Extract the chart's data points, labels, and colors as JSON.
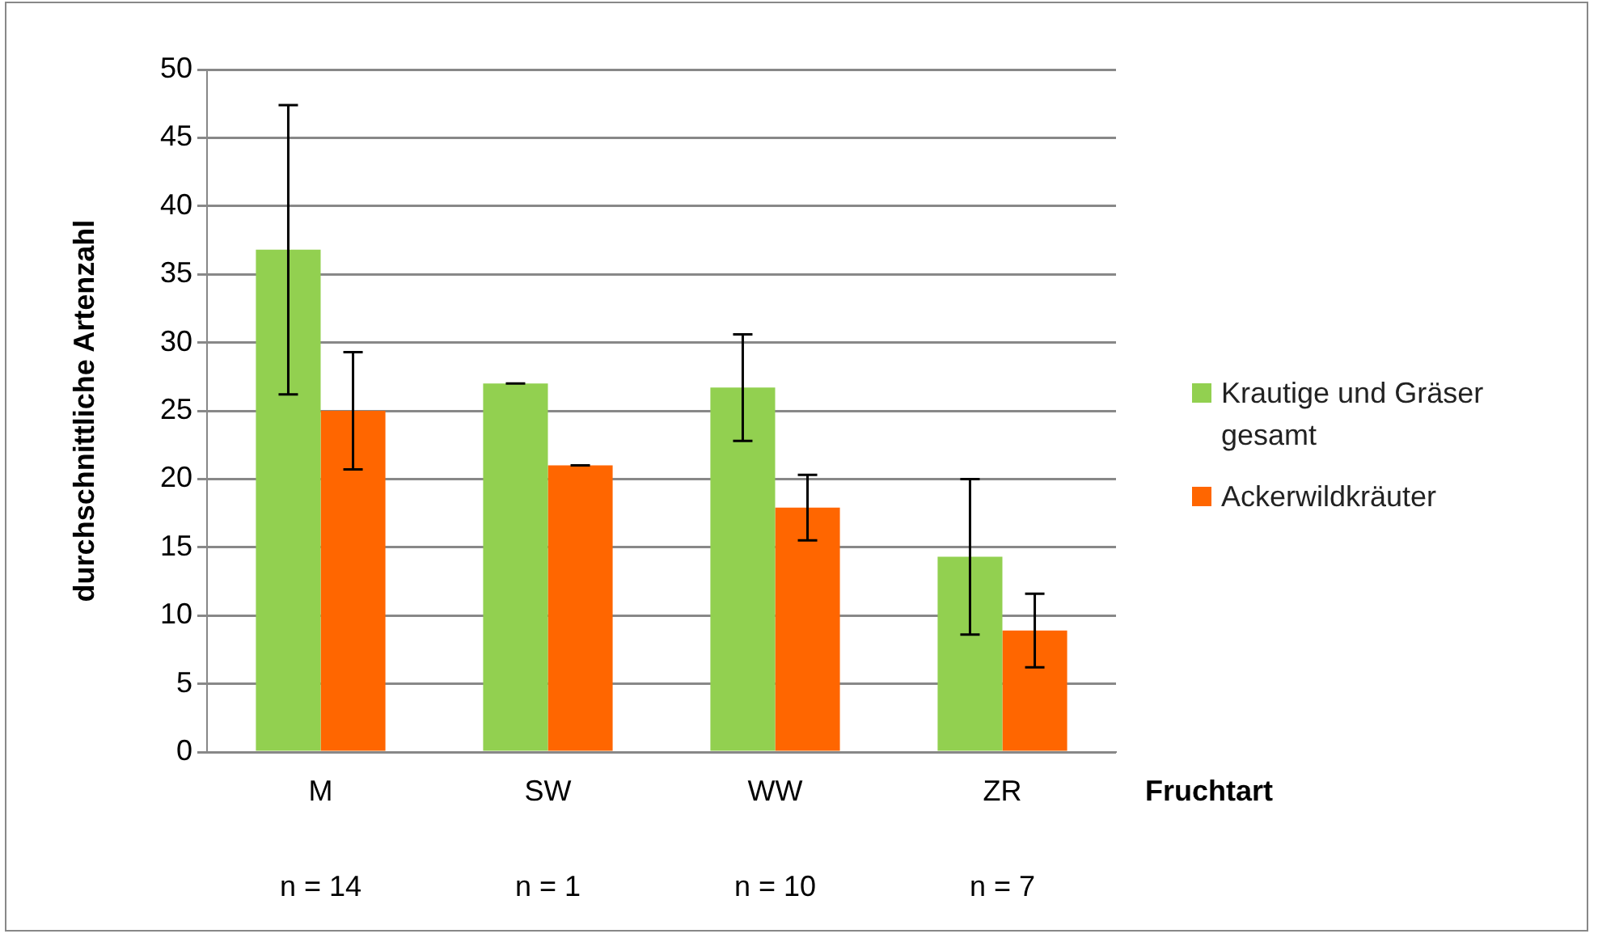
{
  "chart_data": {
    "type": "bar",
    "ylabel": "durchschnittliche Artenzahl",
    "xlabel": "Fruchtart",
    "categories": [
      "M",
      "SW",
      "WW",
      "ZR"
    ],
    "series": [
      {
        "name": "Krautige und Gräser gesamt",
        "color": "#92d050",
        "values": [
          36.8,
          27.0,
          26.7,
          14.3
        ],
        "errors": [
          10.6,
          0,
          3.9,
          5.7
        ]
      },
      {
        "name": "Ackerwildkräuter",
        "color": "#ff6600",
        "values": [
          25.0,
          21.0,
          17.9,
          8.9
        ],
        "errors": [
          4.3,
          0,
          2.4,
          2.7
        ]
      }
    ],
    "ylim": [
      0,
      50
    ],
    "yticks": [
      0,
      5,
      10,
      15,
      20,
      25,
      30,
      35,
      40,
      45,
      50
    ],
    "grid": "y",
    "legend": "right",
    "annotations": [
      "n = 14",
      "n = 1",
      "n = 10",
      "n = 7"
    ]
  }
}
